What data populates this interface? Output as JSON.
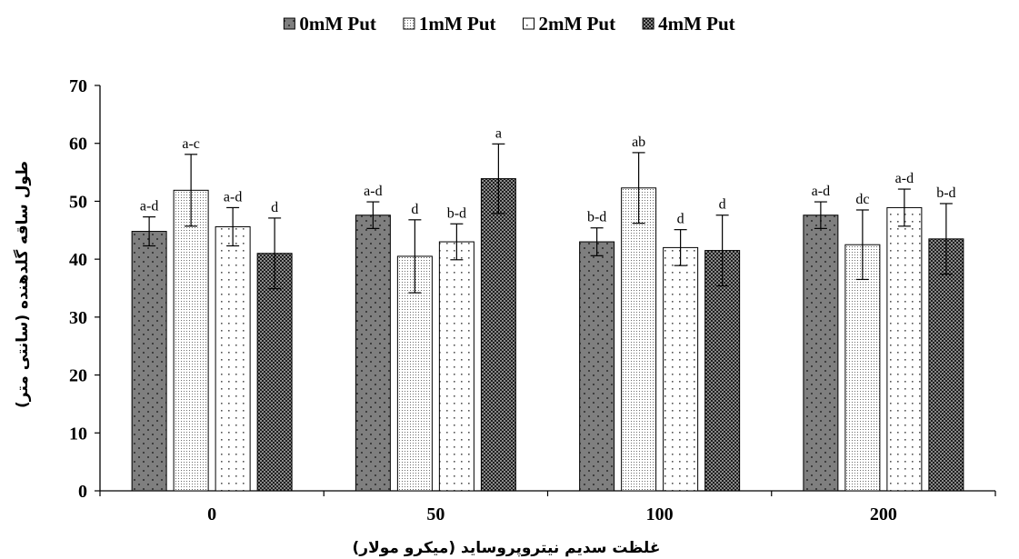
{
  "chart_data": {
    "type": "bar",
    "title": "",
    "xlabel": "غلظت سدیم نیتروپروساید (میکرو مولار)",
    "ylabel": "طول ساقه گلدهنده (سانتی متر)",
    "categories": [
      "0",
      "50",
      "100",
      "200"
    ],
    "ylim": [
      0,
      70
    ],
    "yticks": [
      "0",
      "10",
      "20",
      "30",
      "40",
      "50",
      "60",
      "70"
    ],
    "grid": false,
    "legend_position": "top",
    "series": [
      {
        "name": "0mM Put",
        "pattern": "dark-dots",
        "color": "#7f7f7f",
        "values": [
          44.8,
          47.6,
          43.0,
          47.6
        ],
        "errors": [
          2.5,
          2.3,
          2.4,
          2.3
        ],
        "letters": [
          "a-d",
          "a-d",
          "b-d",
          "a-d"
        ]
      },
      {
        "name": "1mM Put",
        "pattern": "fine-dots",
        "color": "#e6e6e6",
        "values": [
          51.9,
          40.5,
          52.3,
          42.5
        ],
        "errors": [
          6.2,
          6.3,
          6.1,
          6.0
        ],
        "letters": [
          "a-c",
          "d",
          "ab",
          "dc"
        ]
      },
      {
        "name": "2mM Put",
        "pattern": "sparse-dots",
        "color": "#ffffff",
        "values": [
          45.6,
          43.0,
          42.0,
          48.9
        ],
        "errors": [
          3.3,
          3.1,
          3.1,
          3.2
        ],
        "letters": [
          "a-d",
          "b-d",
          "d",
          "a-d"
        ]
      },
      {
        "name": "4mM Put",
        "pattern": "dense-checker",
        "color": "#404040",
        "values": [
          41.0,
          53.9,
          41.5,
          43.5
        ],
        "errors": [
          6.1,
          6.0,
          6.1,
          6.1
        ],
        "letters": [
          "d",
          "a",
          "d",
          "b-d"
        ]
      }
    ]
  }
}
